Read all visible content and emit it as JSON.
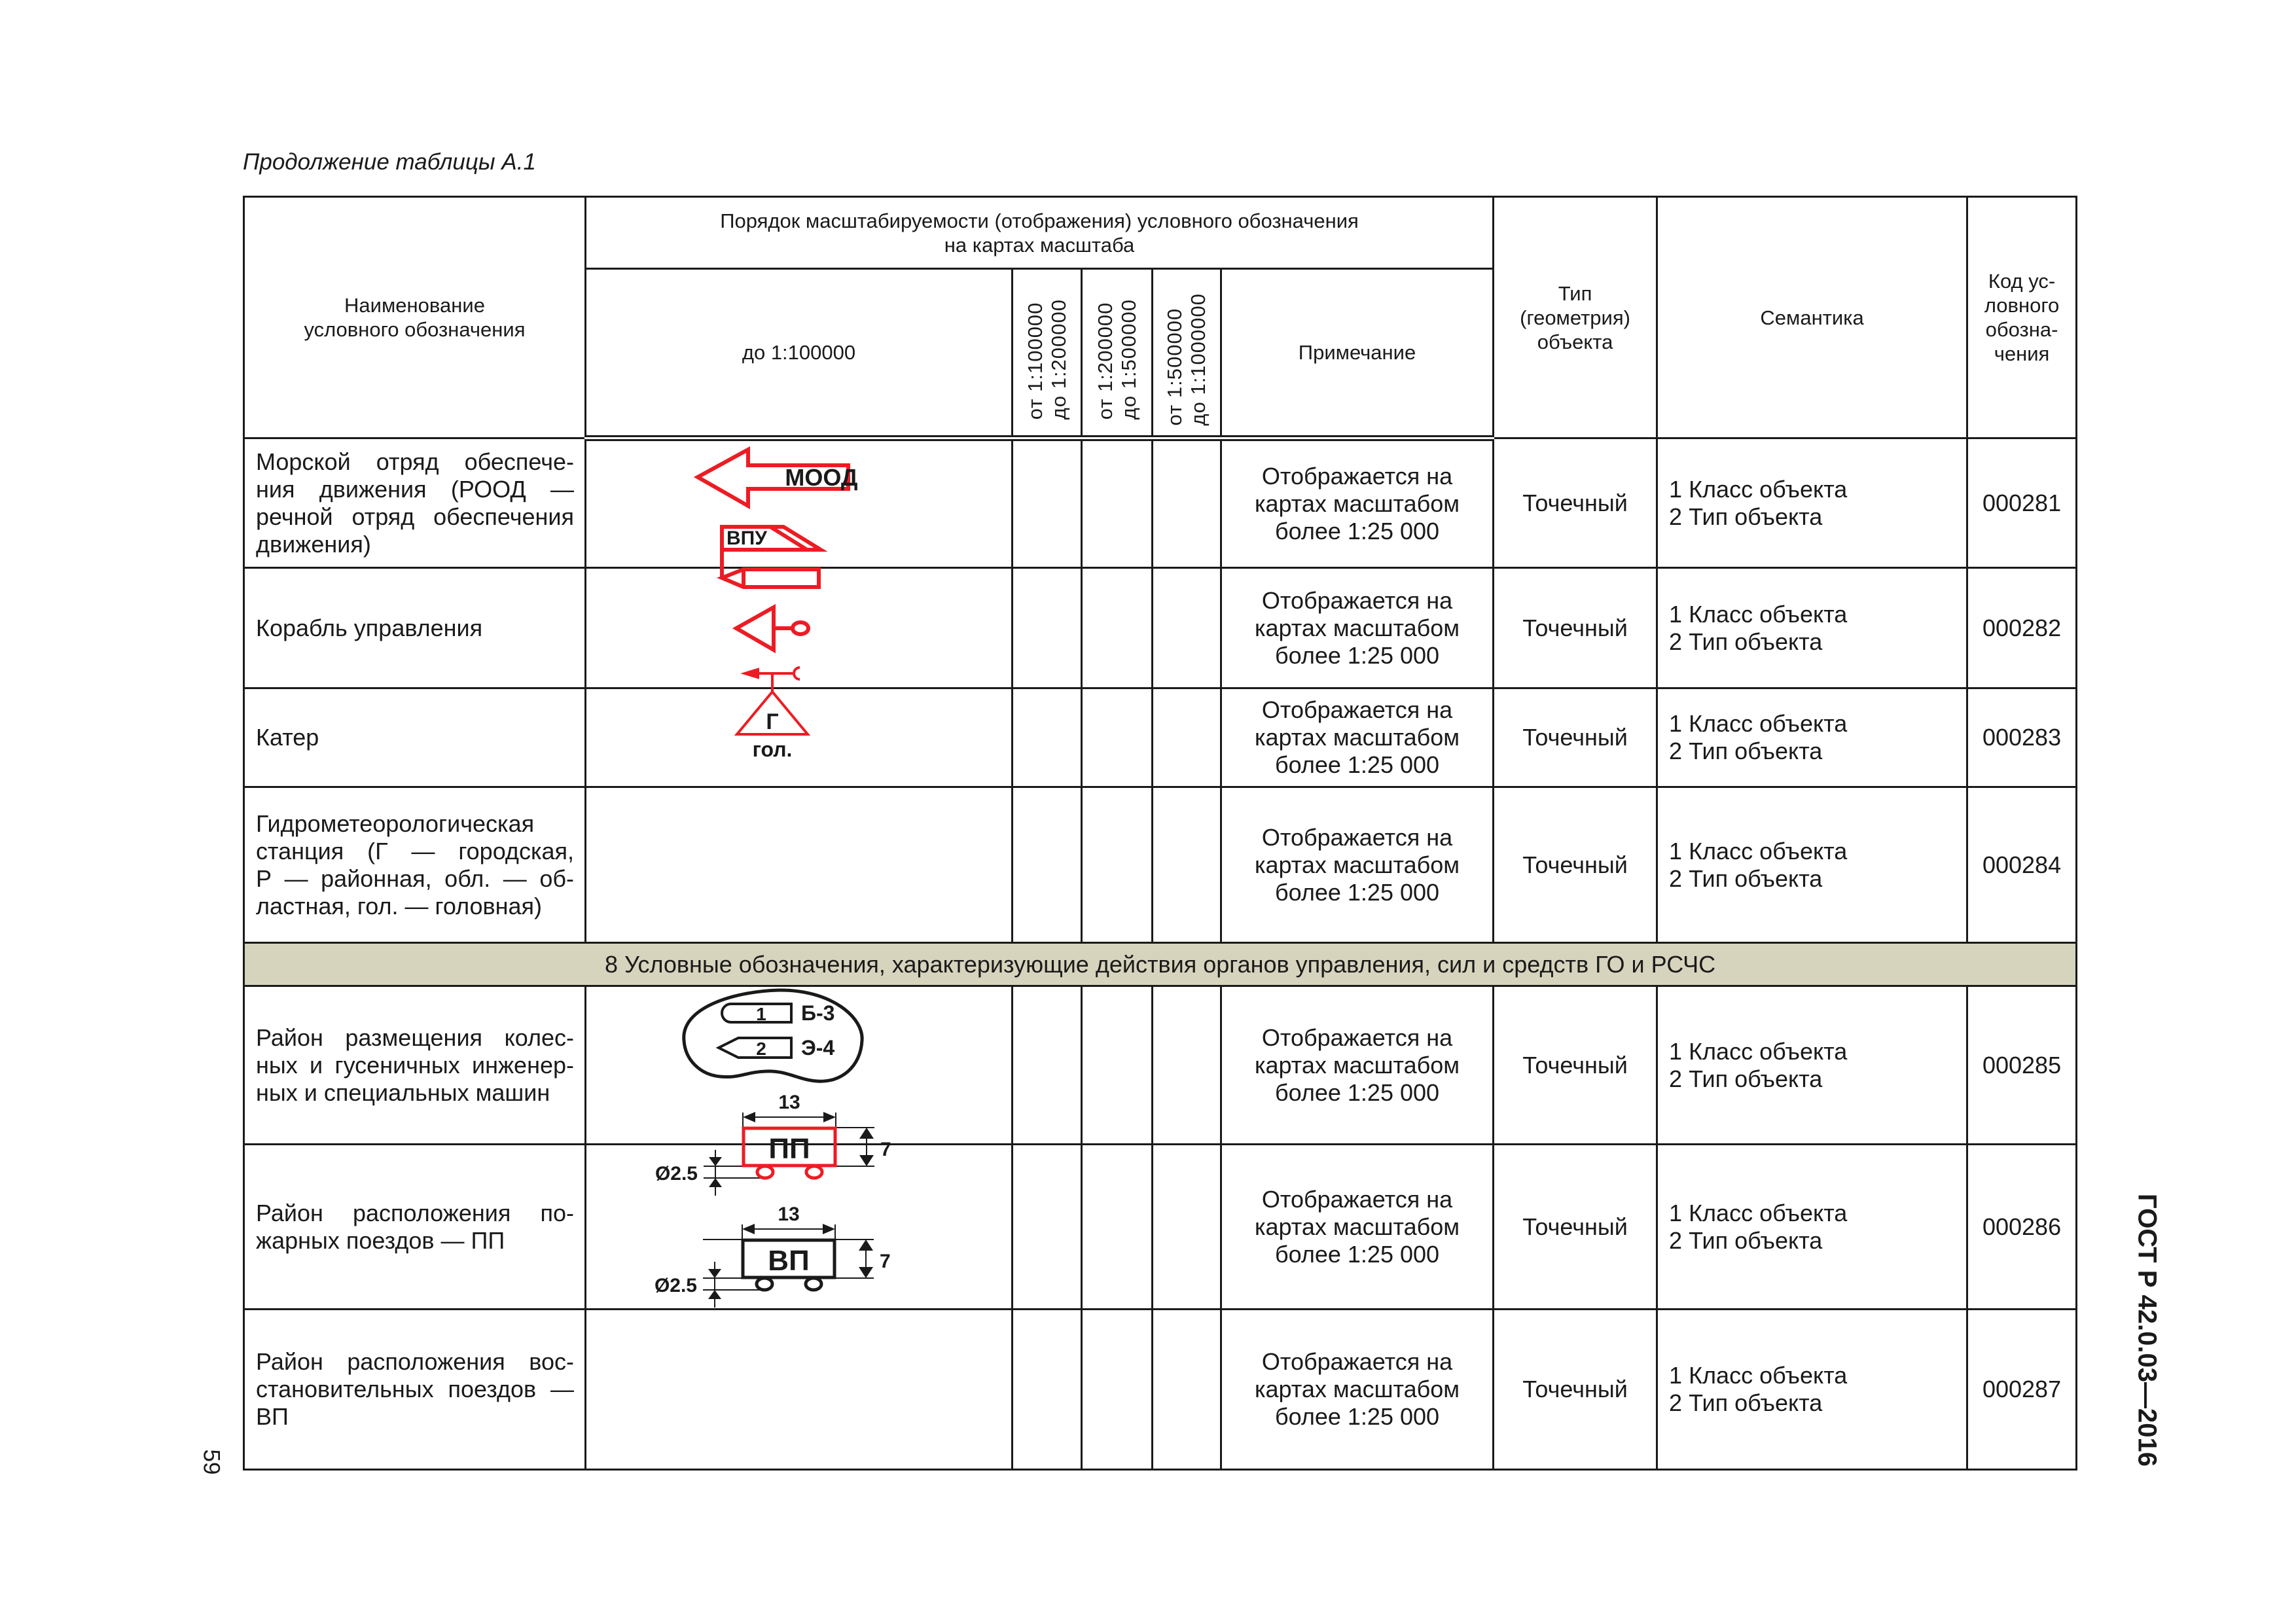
{
  "caption": "Продолжение таблицы А.1",
  "header": {
    "name": "Наименование\nусловного обозначения",
    "scale_group": "Порядок масштабируемости (отображения) условного обозначения\nна картах масштаба",
    "scale_1": "до 1:100000",
    "scale_2": "от 1:100000\nдо 1:200000",
    "scale_3": "от 1:200000\nдо 1:500000",
    "scale_4": "от 1:500000\nдо 1:1000000",
    "note": "Примечание",
    "type": "Тип\n(геометрия)\nобъекта",
    "semantics": "Семантика",
    "code": "Код ус-\nловного\nобозна-\nчения"
  },
  "rows": [
    {
      "name_lines": [
        "Морской отряд обеспече-",
        "ния движения (РООД —",
        "речной отряд обеспечения",
        "движения)"
      ],
      "note": "Отображается на\nкартах масштабом\nболее 1:25 000",
      "type": "Точечный",
      "semantics": "1 Класс объекта\n2 Тип объекта",
      "code": "000281"
    },
    {
      "name_lines": [
        "Корабль управления"
      ],
      "note": "Отображается на\nкартах масштабом\nболее 1:25 000",
      "type": "Точечный",
      "semantics": "1 Класс объекта\n2 Тип объекта",
      "code": "000282"
    },
    {
      "name_lines": [
        "Катер"
      ],
      "note": "Отображается на\nкартах масштабом\nболее 1:25 000",
      "type": "Точечный",
      "semantics": "1 Класс объекта\n2 Тип объекта",
      "code": "000283"
    },
    {
      "name_lines": [
        "Гидрометеорологическая",
        "станция (Г — городская,",
        "Р — районная, обл. — об-",
        "ластная, гол. — головная)"
      ],
      "note": "Отображается на\nкартах масштабом\nболее 1:25 000",
      "type": "Точечный",
      "semantics": "1 Класс объекта\n2 Тип объекта",
      "code": "000284"
    },
    {
      "section": "8 Условные обозначения, характеризующие действия органов управления, сил и средств ГО и РСЧС"
    },
    {
      "name_lines": [
        "Район размещения колес-",
        "ных и гусеничных инженер-",
        "ных и специальных машин"
      ],
      "note": "Отображается на\nкартах масштабом\nболее 1:25 000",
      "type": "Точечный",
      "semantics": "1 Класс объекта\n2 Тип объекта",
      "code": "000285"
    },
    {
      "name_lines": [
        "Район расположения по-",
        "жарных поездов — ПП"
      ],
      "note": "Отображается на\nкартах масштабом\nболее 1:25 000",
      "type": "Точечный",
      "semantics": "1 Класс объекта\n2 Тип объекта",
      "code": "000286"
    },
    {
      "name_lines": [
        "Район расположения вос-",
        "становительных поездов —",
        "ВП"
      ],
      "note": "Отображается на\nкартах масштабом\nболее 1:25 000",
      "type": "Точечный",
      "semantics": "1 Класс объекта\n2 Тип объекта",
      "code": "000287"
    }
  ],
  "symbols": {
    "mood": "МООД",
    "vpu": "ВПУ",
    "hydro_letter": "Г",
    "hydro_label": "гол.",
    "num_1": "1",
    "label_1": "Б-3",
    "num_2": "2",
    "label_2": "Э-4",
    "pp": "ПП",
    "vp": "ВП",
    "dim_width": "13",
    "dim_height": "7",
    "dim_diameter": "Ø2.5"
  },
  "colors": {
    "symbol_red": "#ed1c24",
    "section_fill": "#d7d4bd"
  },
  "footer": {
    "page_number": "59",
    "doc_id": "ГОСТ Р 42.0.03—2016"
  }
}
